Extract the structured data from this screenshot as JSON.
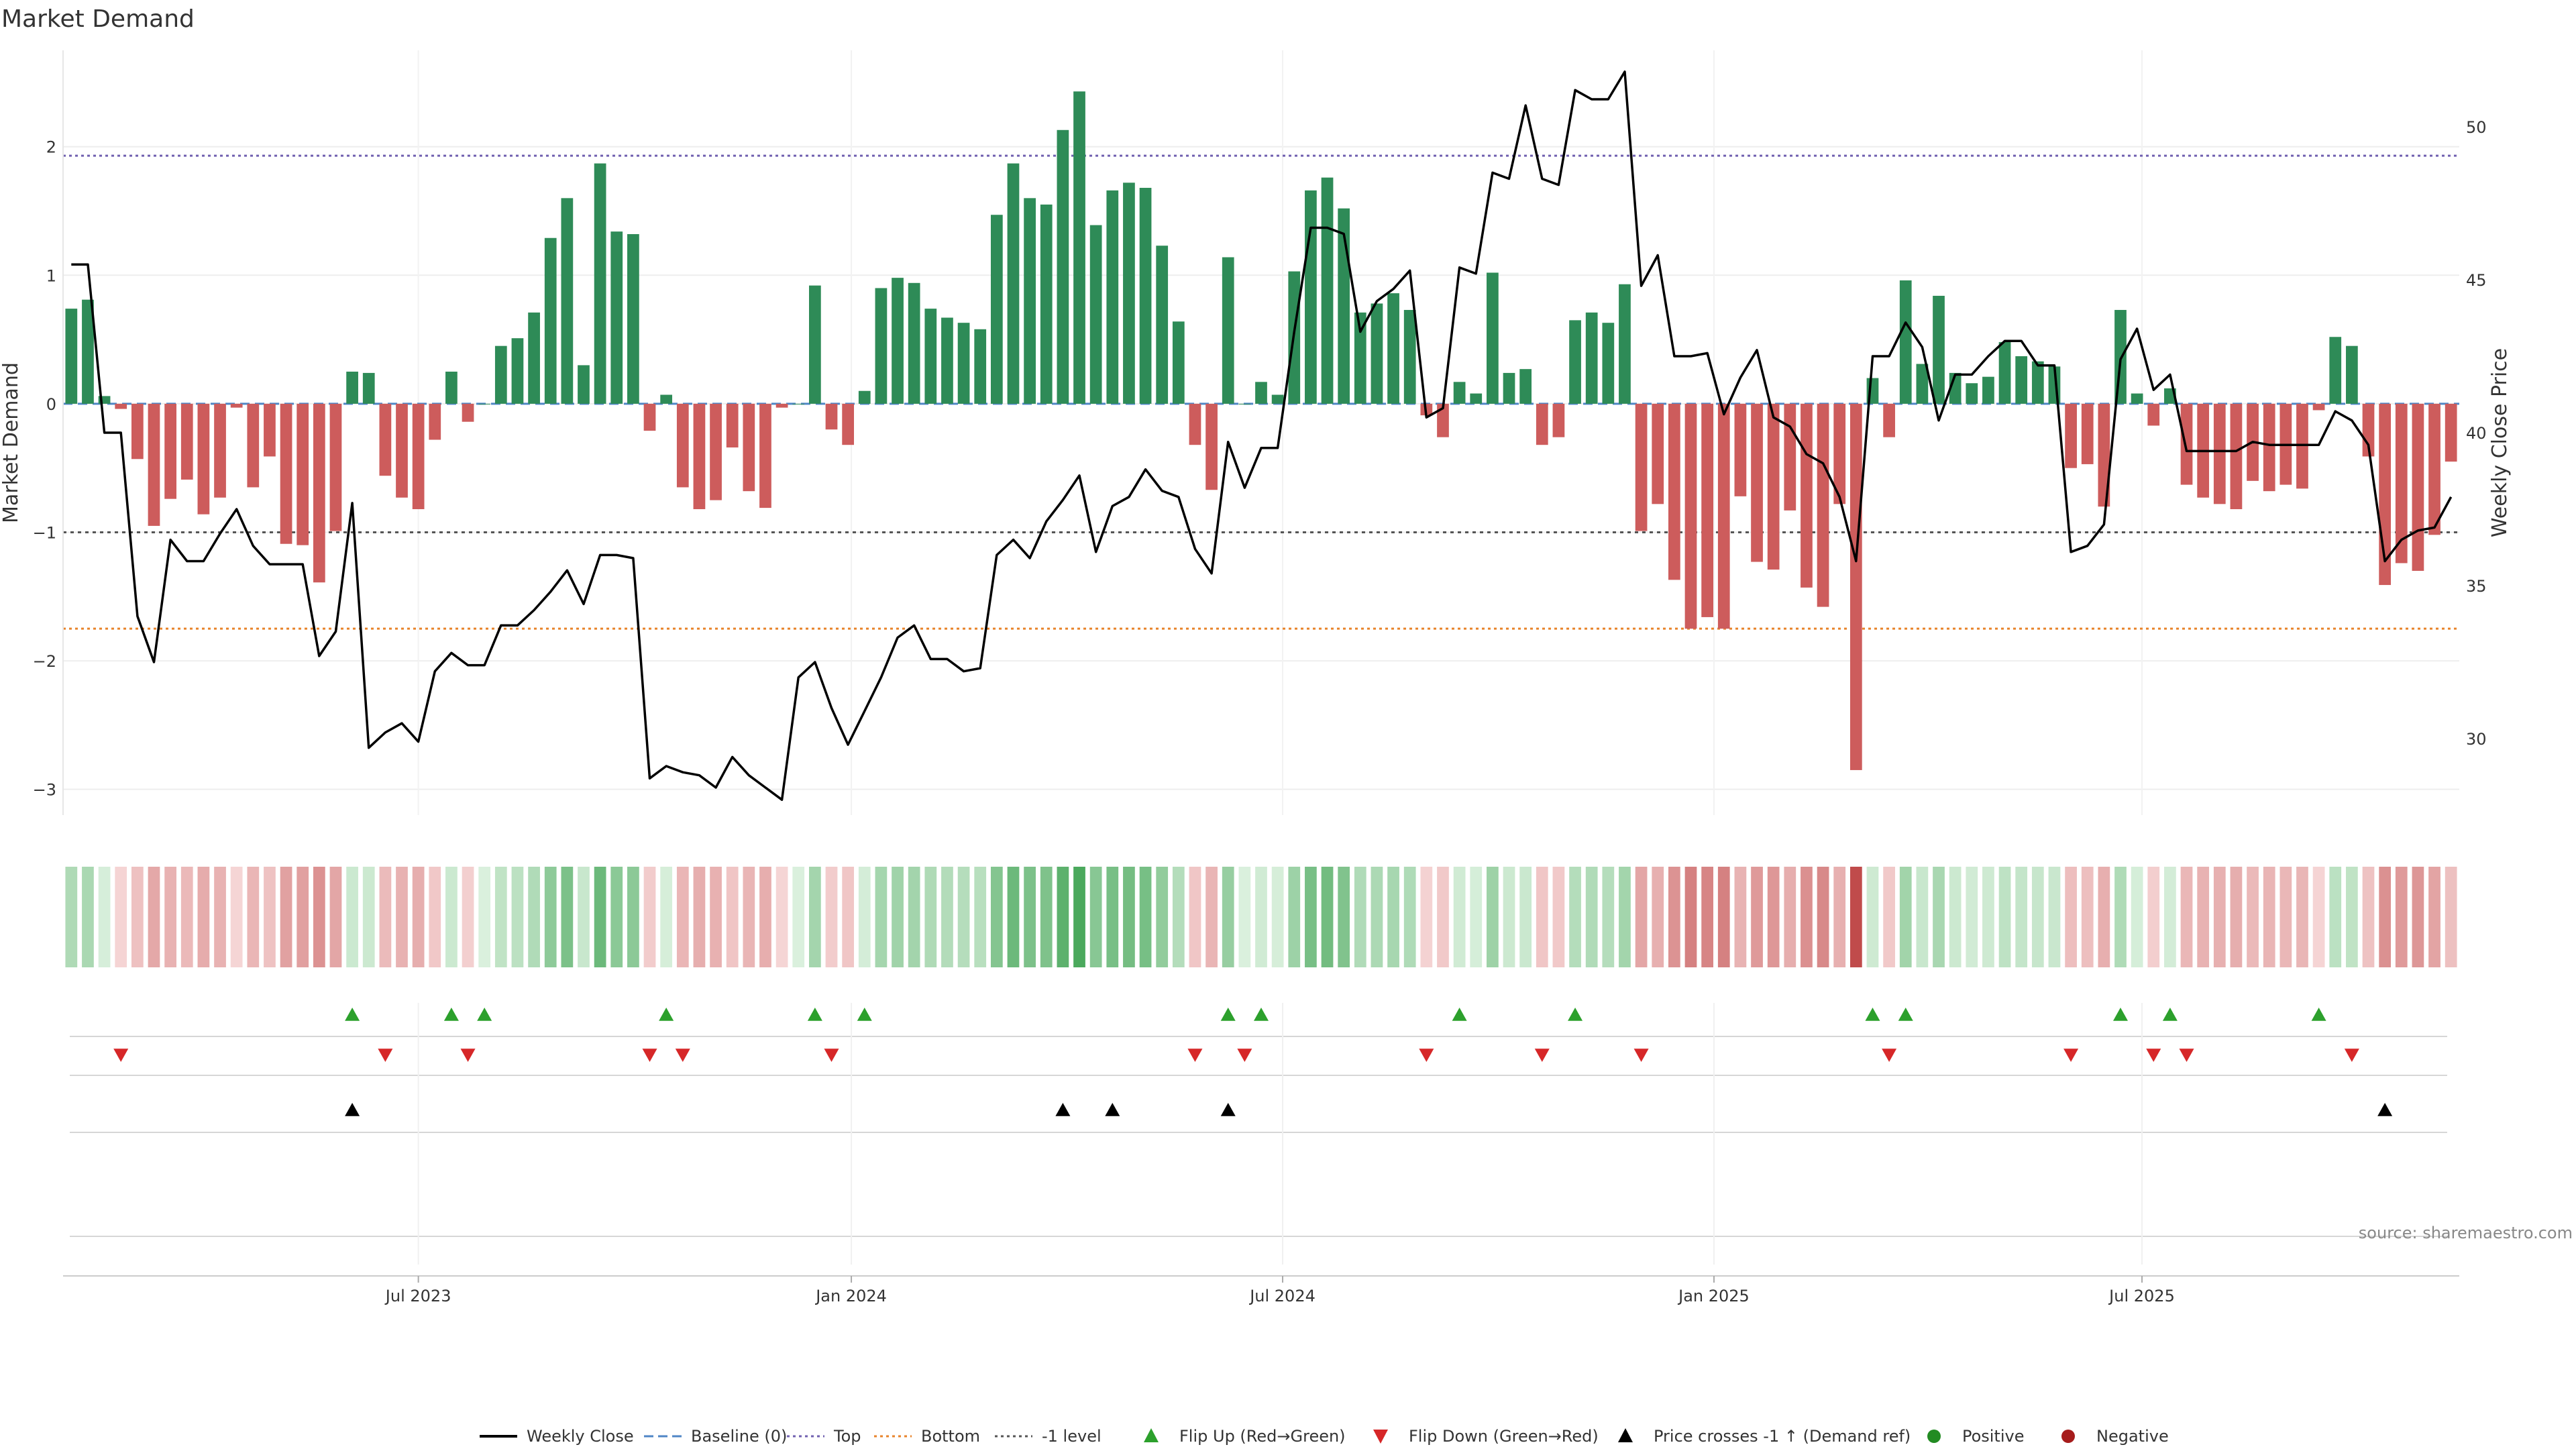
{
  "chart_data": {
    "type": "bar",
    "title": "Market Demand",
    "ylabel": "Market Demand",
    "y2label": "Weekly Close Price",
    "ylim": [
      -3.2,
      2.75
    ],
    "y2lim": [
      27.5,
      52.5
    ],
    "y_ticks": [
      2,
      1,
      0,
      -1,
      -2,
      -3
    ],
    "y_tick_labels": [
      "2",
      "1",
      "0",
      "−1",
      "−2",
      "−3"
    ],
    "y2_ticks": [
      50,
      45,
      40,
      35,
      30
    ],
    "y2_tick_labels": [
      "50",
      "45",
      "40",
      "35",
      "30"
    ],
    "x_ticks": [
      21.5,
      47.7,
      73.8,
      99.9,
      125.8
    ],
    "x_tick_labels": [
      "Jul 2023",
      "Jan 2024",
      "Jul 2024",
      "Jan 2025",
      "Jul 2025"
    ],
    "reference_lines": {
      "top": 1.93,
      "baseline": 0,
      "bottom": -1.75,
      "minus_one": -1
    },
    "demand": [
      0.74,
      0.81,
      0.06,
      -0.04,
      -0.43,
      -0.95,
      -0.74,
      -0.59,
      -0.86,
      -0.73,
      -0.03,
      -0.65,
      -0.41,
      -1.09,
      -1.1,
      -1.39,
      -0.99,
      0.25,
      0.24,
      -0.56,
      -0.73,
      -0.82,
      -0.28,
      0.25,
      -0.14,
      0,
      0.45,
      0.51,
      0.71,
      1.29,
      1.6,
      0.3,
      1.87,
      1.34,
      1.32,
      -0.21,
      0.07,
      -0.65,
      -0.82,
      -0.75,
      -0.34,
      -0.68,
      -0.81,
      -0.03,
      0,
      0.92,
      -0.2,
      -0.32,
      0.1,
      0.9,
      0.98,
      0.94,
      0.74,
      0.67,
      0.63,
      0.58,
      1.47,
      1.87,
      1.6,
      1.55,
      2.13,
      2.43,
      1.39,
      1.66,
      1.72,
      1.68,
      1.23,
      0.64,
      -0.32,
      -0.67,
      1.14,
      0,
      0.17,
      0.07,
      1.03,
      1.66,
      1.76,
      1.52,
      0.71,
      0.78,
      0.86,
      0.73,
      -0.09,
      -0.26,
      0.17,
      0.08,
      1.02,
      0.24,
      0.27,
      -0.32,
      -0.26,
      0.65,
      0.71,
      0.63,
      0.93,
      -0.99,
      -0.78,
      -1.37,
      -1.75,
      -1.66,
      -1.75,
      -0.72,
      -1.23,
      -1.29,
      -0.83,
      -1.43,
      -1.58,
      -0.78,
      -2.85,
      0.2,
      -0.26,
      0.96,
      0.31,
      0.84,
      0.24,
      0.16,
      0.21,
      0.48,
      0.37,
      0.33,
      0.29,
      -0.5,
      -0.47,
      -0.8,
      0.73,
      0.08,
      -0.17,
      0.12,
      -0.63,
      -0.73,
      -0.78,
      -0.82,
      -0.6,
      -0.68,
      -0.63,
      -0.66,
      -0.05,
      0.52,
      0.45,
      -0.41,
      -1.41,
      -1.24,
      -1.3,
      -1.02,
      -0.45
    ],
    "close": [
      45.5,
      45.5,
      40,
      40,
      34,
      32.5,
      36.5,
      35.8,
      35.8,
      36.7,
      37.5,
      36.3,
      35.7,
      35.7,
      35.7,
      32.7,
      33.5,
      37.7,
      29.7,
      30.2,
      30.5,
      29.9,
      32.2,
      32.8,
      32.4,
      32.4,
      33.7,
      33.7,
      34.2,
      34.8,
      35.5,
      34.4,
      36,
      36,
      35.9,
      28.7,
      29.1,
      28.9,
      28.8,
      28.4,
      29.4,
      28.8,
      28.4,
      28,
      32,
      32.5,
      31,
      29.8,
      30.9,
      32,
      33.3,
      33.7,
      32.6,
      32.6,
      32.2,
      32.3,
      36,
      36.5,
      35.9,
      37.1,
      37.8,
      38.6,
      36.1,
      37.6,
      37.9,
      38.8,
      38.1,
      37.9,
      36.2,
      35.4,
      39.7,
      38.2,
      39.5,
      39.5,
      43.3,
      46.7,
      46.7,
      46.5,
      43.3,
      44.3,
      44.7,
      45.3,
      40.5,
      40.8,
      45.4,
      45.2,
      48.5,
      48.3,
      50.7,
      48.3,
      48.1,
      51.2,
      50.9,
      50.9,
      51.8,
      44.8,
      45.8,
      42.5,
      42.5,
      42.6,
      40.6,
      41.8,
      42.7,
      40.5,
      40.2,
      39.3,
      39,
      37.9,
      35.8,
      42.5,
      42.5,
      43.6,
      42.8,
      40.4,
      41.9,
      41.9,
      42.5,
      43,
      43,
      42.2,
      42.2,
      36.1,
      36.3,
      37,
      42.4,
      43.4,
      41.4,
      41.9,
      39.4,
      39.4,
      39.4,
      39.4,
      39.7,
      39.6,
      39.6,
      39.6,
      39.6,
      40.7,
      40.4,
      39.6,
      35.8,
      36.5,
      36.8,
      36.9,
      37.9
    ],
    "flip_up_idx": [
      17,
      23,
      25,
      36,
      45,
      48,
      70,
      72,
      84,
      91,
      109,
      111,
      124,
      127,
      136
    ],
    "flip_down_idx": [
      3,
      19,
      24,
      35,
      37,
      46,
      68,
      71,
      82,
      89,
      95,
      110,
      121,
      126,
      128,
      138
    ],
    "price_cross_idx": [
      17,
      60,
      63,
      70,
      140
    ],
    "legend": [
      {
        "label": "Weekly Close",
        "kind": "line",
        "color": "#000000"
      },
      {
        "label": "Baseline (0)",
        "kind": "dash",
        "color": "#4f86c6"
      },
      {
        "label": "Top",
        "kind": "dot",
        "color": "#7060b0"
      },
      {
        "label": "Bottom",
        "kind": "dot",
        "color": "#e8842b"
      },
      {
        "label": "-1 level",
        "kind": "dot",
        "color": "#555555"
      },
      {
        "label": "Flip Up (Red→Green)",
        "kind": "tri-up",
        "color": "#2ca02c"
      },
      {
        "label": "Flip Down (Green→Red)",
        "kind": "tri-down",
        "color": "#d62728"
      },
      {
        "label": "Price crosses -1 ↑ (Demand ref)",
        "kind": "tri-up",
        "color": "#000000"
      },
      {
        "label": "Positive",
        "kind": "dot-marker",
        "color": "#228B22"
      },
      {
        "label": "Negative",
        "kind": "dot-marker",
        "color": "#a61c1c"
      }
    ],
    "source": "source: sharemaestro.com"
  },
  "colors": {
    "positive": "#2e8b57",
    "negative": "#cd5c5c",
    "flip_up": "#2ca02c",
    "flip_down": "#d62728",
    "cross": "#000000",
    "close_line": "#000000",
    "top": "#7060b0",
    "bottom": "#e8842b",
    "minus_one": "#555555",
    "baseline": "#4f86c6"
  }
}
